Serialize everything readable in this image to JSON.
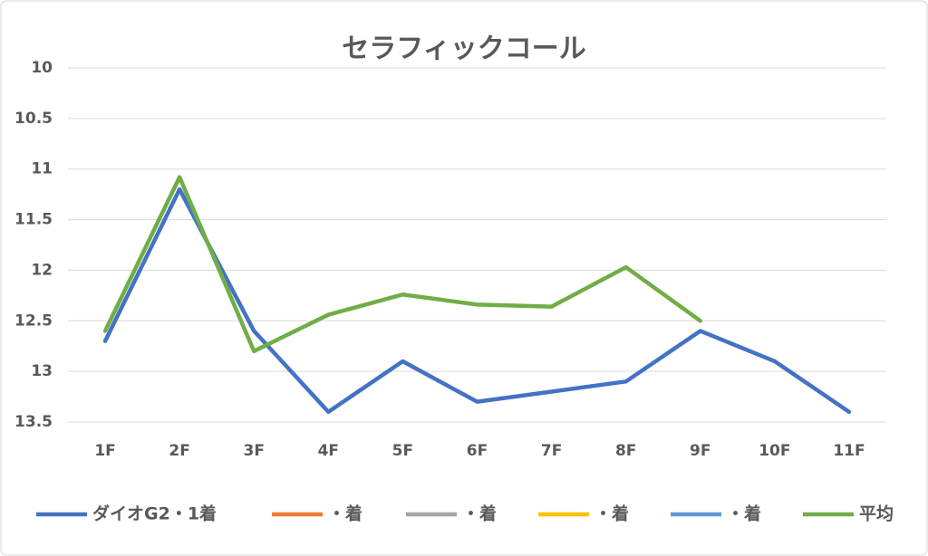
{
  "chart_data": {
    "type": "line",
    "title": "セラフィックコール",
    "categories": [
      "1F",
      "2F",
      "3F",
      "4F",
      "5F",
      "6F",
      "7F",
      "8F",
      "9F",
      "10F",
      "11F"
    ],
    "series": [
      {
        "name": "ダイオG2・1着",
        "color": "#4472c4",
        "values": [
          12.7,
          11.2,
          12.6,
          13.4,
          12.9,
          13.3,
          13.2,
          13.1,
          12.6,
          12.9,
          13.4
        ]
      },
      {
        "name": "・着",
        "color": "#ed7d31",
        "values": [
          null,
          null,
          null,
          null,
          null,
          null,
          null,
          null,
          null,
          null,
          null
        ]
      },
      {
        "name": "・着",
        "color": "#a5a5a5",
        "values": [
          null,
          null,
          null,
          null,
          null,
          null,
          null,
          null,
          null,
          null,
          null
        ]
      },
      {
        "name": "・着",
        "color": "#ffc000",
        "values": [
          null,
          null,
          null,
          null,
          null,
          null,
          null,
          null,
          null,
          null,
          null
        ]
      },
      {
        "name": "・着",
        "color": "#5b9bd5",
        "values": [
          null,
          null,
          null,
          null,
          null,
          null,
          null,
          null,
          null,
          null,
          null
        ]
      },
      {
        "name": "平均",
        "color": "#70ad47",
        "values": [
          12.6,
          11.08,
          12.8,
          12.44,
          12.24,
          12.34,
          12.36,
          11.97,
          12.5,
          null,
          null
        ]
      }
    ],
    "ylim": [
      10,
      13.5
    ],
    "y_reversed": true,
    "yticks": [
      10,
      10.5,
      11,
      11.5,
      12,
      12.5,
      13,
      13.5
    ],
    "grid": true,
    "legend": "bottom"
  }
}
